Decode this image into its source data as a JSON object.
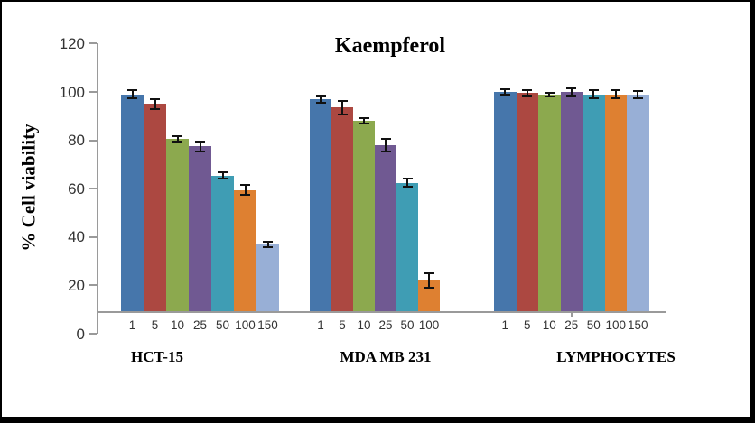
{
  "chart_data": {
    "type": "bar",
    "title": "Kaempferol",
    "ylabel": "% Cell viability",
    "xlabel": "",
    "ylim": [
      0,
      120
    ],
    "yticks": [
      0,
      20,
      40,
      60,
      80,
      100,
      120
    ],
    "grid": false,
    "legend": "none",
    "error_bars": true,
    "axis_color": "#9A9A9A",
    "error_bar_color": "#111111",
    "tick_label_color": "#333333",
    "title_color": "#000000",
    "series_colors": [
      "#4676AB",
      "#AC4841",
      "#8CA94E",
      "#705992",
      "#3F9DB4",
      "#DE8031",
      "#98AFD6"
    ],
    "groups": [
      {
        "label": "HCT-15",
        "categories": [
          "1",
          "5",
          "10",
          "25",
          "50",
          "100",
          "150"
        ],
        "values": [
          99,
          95,
          80.5,
          77.5,
          65.5,
          59.5,
          37
        ],
        "errors": [
          2,
          2.5,
          1.5,
          2.5,
          1.5,
          2.5,
          1.5
        ]
      },
      {
        "label": "MDA MB 231",
        "categories": [
          "1",
          "5",
          "10",
          "25",
          "50",
          "100"
        ],
        "values": [
          97,
          93.5,
          88,
          78,
          62.5,
          22
        ],
        "errors": [
          2,
          3,
          1.5,
          3,
          2,
          3.5
        ]
      },
      {
        "label": "LYMPHOCYTES",
        "categories": [
          "1",
          "5",
          "10",
          "25",
          "50",
          "100",
          "150"
        ],
        "values": [
          100,
          99.5,
          99,
          100,
          99,
          99,
          99
        ],
        "errors": [
          1.5,
          1.5,
          1.2,
          1.8,
          2,
          2,
          1.8
        ]
      }
    ]
  }
}
